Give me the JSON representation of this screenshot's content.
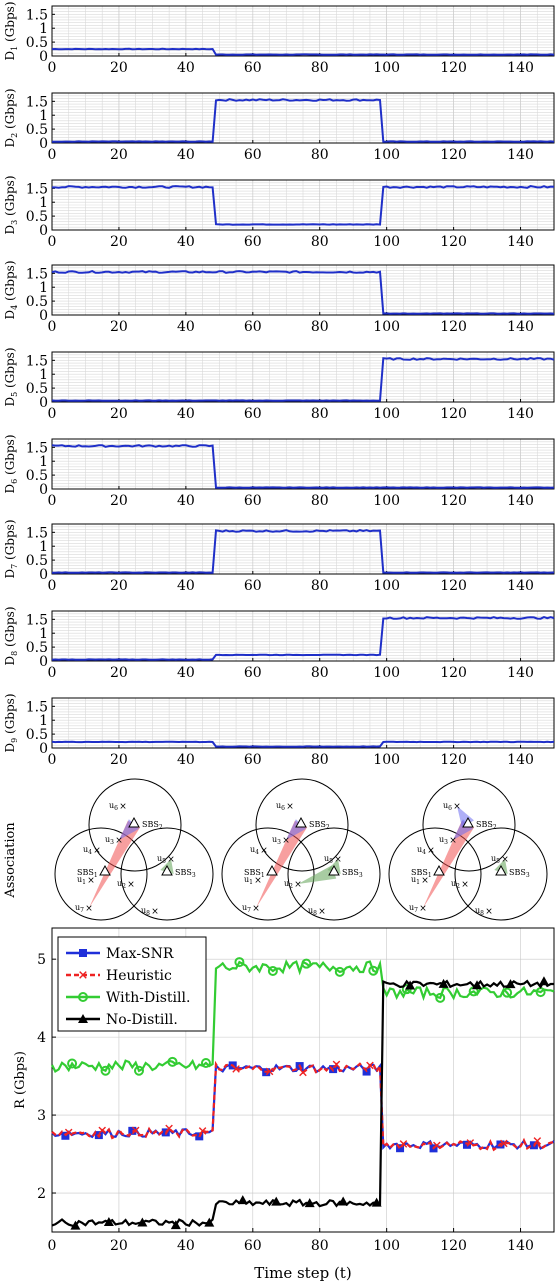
{
  "chart_data": [
    {
      "type": "line",
      "ylabel": "D",
      "ylabel_sub": "1",
      "ylabel_unit": " (Gbps)",
      "segments": [
        0.25,
        0.05,
        0.05
      ],
      "xlim": [
        0,
        150
      ],
      "ylim": [
        0,
        1.8
      ],
      "yticks": [
        "0",
        "0.5",
        "1",
        "1.5"
      ],
      "xticks": [
        "0",
        "20",
        "40",
        "60",
        "80",
        "100",
        "120",
        "140"
      ]
    },
    {
      "type": "line",
      "ylabel": "D",
      "ylabel_sub": "2",
      "ylabel_unit": " (Gbps)",
      "segments": [
        0.05,
        1.55,
        0.05
      ],
      "xlim": [
        0,
        150
      ],
      "ylim": [
        0,
        1.8
      ],
      "yticks": [
        "0",
        "0.5",
        "1",
        "1.5"
      ],
      "xticks": [
        "0",
        "20",
        "40",
        "60",
        "80",
        "100",
        "120",
        "140"
      ]
    },
    {
      "type": "line",
      "ylabel": "D",
      "ylabel_sub": "3",
      "ylabel_unit": " (Gbps)",
      "segments": [
        1.55,
        0.2,
        1.55
      ],
      "xlim": [
        0,
        150
      ],
      "ylim": [
        0,
        1.8
      ],
      "yticks": [
        "0",
        "0.5",
        "1",
        "1.5"
      ],
      "xticks": [
        "0",
        "20",
        "40",
        "60",
        "80",
        "100",
        "120",
        "140"
      ]
    },
    {
      "type": "line",
      "ylabel": "D",
      "ylabel_sub": "4",
      "ylabel_unit": " (Gbps)",
      "segments": [
        1.55,
        1.55,
        0.05
      ],
      "xlim": [
        0,
        150
      ],
      "ylim": [
        0,
        1.8
      ],
      "yticks": [
        "0",
        "0.5",
        "1",
        "1.5"
      ],
      "xticks": [
        "0",
        "20",
        "40",
        "60",
        "80",
        "100",
        "120",
        "140"
      ]
    },
    {
      "type": "line",
      "ylabel": "D",
      "ylabel_sub": "5",
      "ylabel_unit": " (Gbps)",
      "segments": [
        0.05,
        0.05,
        1.55
      ],
      "xlim": [
        0,
        150
      ],
      "ylim": [
        0,
        1.8
      ],
      "yticks": [
        "0",
        "0.5",
        "1",
        "1.5"
      ],
      "xticks": [
        "0",
        "20",
        "40",
        "60",
        "80",
        "100",
        "120",
        "140"
      ]
    },
    {
      "type": "line",
      "ylabel": "D",
      "ylabel_sub": "6",
      "ylabel_unit": " (Gbps)",
      "segments": [
        1.55,
        0.05,
        0.05
      ],
      "xlim": [
        0,
        150
      ],
      "ylim": [
        0,
        1.8
      ],
      "yticks": [
        "0",
        "0.5",
        "1",
        "1.5"
      ],
      "xticks": [
        "0",
        "20",
        "40",
        "60",
        "80",
        "100",
        "120",
        "140"
      ]
    },
    {
      "type": "line",
      "ylabel": "D",
      "ylabel_sub": "7",
      "ylabel_unit": " (Gbps)",
      "segments": [
        0.05,
        1.55,
        0.05
      ],
      "xlim": [
        0,
        150
      ],
      "ylim": [
        0,
        1.8
      ],
      "yticks": [
        "0",
        "0.5",
        "1",
        "1.5"
      ],
      "xticks": [
        "0",
        "20",
        "40",
        "60",
        "80",
        "100",
        "120",
        "140"
      ]
    },
    {
      "type": "line",
      "ylabel": "D",
      "ylabel_sub": "8",
      "ylabel_unit": " (Gbps)",
      "segments": [
        0.05,
        0.22,
        1.55
      ],
      "xlim": [
        0,
        150
      ],
      "ylim": [
        0,
        1.8
      ],
      "yticks": [
        "0",
        "0.5",
        "1",
        "1.5"
      ],
      "xticks": [
        "0",
        "20",
        "40",
        "60",
        "80",
        "100",
        "120",
        "140"
      ]
    },
    {
      "type": "line",
      "ylabel": "D",
      "ylabel_sub": "9",
      "ylabel_unit": " (Gbps)",
      "segments": [
        0.22,
        0.05,
        0.22
      ],
      "xlim": [
        0,
        150
      ],
      "ylim": [
        0,
        1.8
      ],
      "yticks": [
        "0",
        "0.5",
        "1",
        "1.5"
      ],
      "xticks": [
        "0",
        "20",
        "40",
        "60",
        "80",
        "100",
        "120",
        "140"
      ]
    },
    {
      "type": "line",
      "ylabel": "R (Gbps)",
      "xlabel": "Time step (t)",
      "xlim": [
        0,
        150
      ],
      "ylim": [
        1.5,
        5.4
      ],
      "yticks": [
        "2",
        "3",
        "4",
        "5"
      ],
      "xticks": [
        "0",
        "20",
        "40",
        "60",
        "80",
        "100",
        "120",
        "140"
      ],
      "legend_position": "top-left",
      "series": [
        {
          "name": "Max-SNR",
          "color": "#1f2fd9",
          "marker": "square",
          "segments": [
            2.77,
            3.6,
            2.62
          ]
        },
        {
          "name": "Heuristic",
          "color": "#ee2222",
          "marker": "x",
          "segments": [
            2.77,
            3.6,
            2.62
          ]
        },
        {
          "name": "With-Distill.",
          "color": "#33cc33",
          "marker": "circle",
          "segments": [
            3.63,
            4.9,
            4.57
          ]
        },
        {
          "name": "No-Distill.",
          "color": "#000000",
          "marker": "triangle",
          "segments": [
            1.62,
            1.87,
            4.68
          ]
        }
      ]
    }
  ],
  "association": {
    "label": "Association",
    "diagrams": [
      {
        "links": [
          [
            "u1",
            "SBS2",
            "red"
          ],
          [
            "u3",
            "SBS2",
            "blue"
          ],
          [
            "u5",
            "SBS3",
            "green"
          ]
        ]
      },
      {
        "links": [
          [
            "u1",
            "SBS2",
            "red"
          ],
          [
            "u3",
            "SBS2",
            "blue"
          ],
          [
            "u5",
            "SBS3",
            "green"
          ],
          [
            "u2",
            "SBS3",
            "green"
          ]
        ]
      },
      {
        "links": [
          [
            "u1",
            "SBS2",
            "red"
          ],
          [
            "u3",
            "SBS2",
            "blue"
          ],
          [
            "u5",
            "SBS3",
            "green"
          ],
          [
            "u4",
            "SBS2",
            "blue"
          ]
        ]
      }
    ],
    "nodes": {
      "u4": "u",
      "u3": "u",
      "u6": "u",
      "u5": "u",
      "u1": "u",
      "u2": "u",
      "u7": "u",
      "u8": "u",
      "SBS1": "SBS",
      "SBS2": "SBS",
      "SBS3": "SBS"
    }
  }
}
